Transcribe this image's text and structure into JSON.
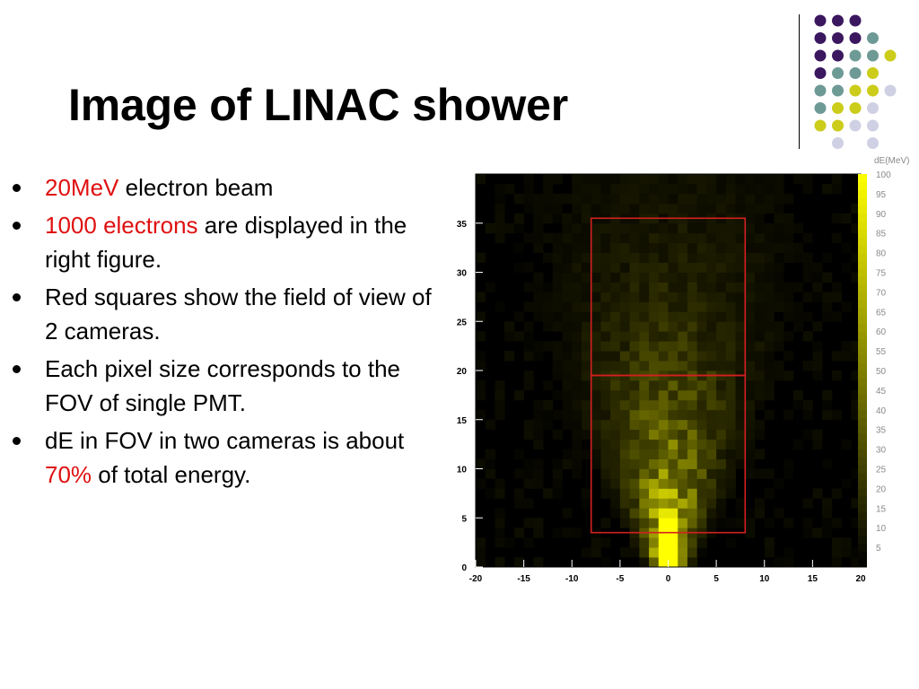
{
  "slide": {
    "title": "Image of LINAC shower"
  },
  "bullets": [
    {
      "parts": [
        {
          "text": "20MeV",
          "hl": true
        },
        {
          "text": " electron beam",
          "hl": false
        }
      ]
    },
    {
      "parts": [
        {
          "text": "1000 electrons",
          "hl": true
        },
        {
          "text": " are displayed in the right figure.",
          "hl": false
        }
      ]
    },
    {
      "parts": [
        {
          "text": "Red squares show the field of view of 2 cameras.",
          "hl": false
        }
      ]
    },
    {
      "parts": [
        {
          "text": "Each pixel size corresponds to the FOV of single PMT.",
          "hl": false
        }
      ]
    },
    {
      "parts": [
        {
          "text": "dE in FOV in two cameras is about ",
          "hl": false
        },
        {
          "text": "70%",
          "hl": true
        },
        {
          "text": " of total energy.",
          "hl": false
        }
      ]
    }
  ],
  "colors": {
    "highlight": "#e01010",
    "heatmap_low": "#000000",
    "heatmap_high": "#ffff00",
    "fov_box": "#d42020",
    "dot_purple": "#3b1760",
    "dot_teal": "#6e9a96",
    "dot_yellow": "#cccc1a",
    "dot_lavender": "#d0d0e4"
  },
  "decoration_dots": [
    [
      "purple",
      "purple",
      "purple",
      "",
      ""
    ],
    [
      "purple",
      "purple",
      "purple",
      "teal",
      ""
    ],
    [
      "purple",
      "purple",
      "teal",
      "teal",
      "yellow"
    ],
    [
      "purple",
      "teal",
      "teal",
      "yellow",
      ""
    ],
    [
      "teal",
      "teal",
      "yellow",
      "yellow",
      "lavender"
    ],
    [
      "teal",
      "yellow",
      "yellow",
      "lavender",
      ""
    ],
    [
      "yellow",
      "yellow",
      "lavender",
      "lavender",
      ""
    ],
    [
      "",
      "lavender",
      "",
      "lavender",
      ""
    ]
  ],
  "chart_data": {
    "type": "heatmap",
    "title": "",
    "xlabel": "",
    "ylabel": "",
    "xlim": [
      -20,
      20
    ],
    "ylim": [
      0,
      40
    ],
    "x_ticks": [
      -20,
      -15,
      -10,
      -5,
      0,
      5,
      10,
      15,
      20
    ],
    "y_ticks": [
      0,
      5,
      10,
      15,
      20,
      25,
      30,
      35
    ],
    "colorbar": {
      "label": "dE(MeV)",
      "range": [
        0,
        100
      ],
      "ticks": [
        5,
        10,
        15,
        20,
        25,
        30,
        35,
        40,
        45,
        50,
        55,
        60,
        65,
        70,
        75,
        80,
        85,
        90,
        95,
        100
      ]
    },
    "bin_size": 1,
    "shower": {
      "beam_axis_x": 0,
      "beam_column_value": 100,
      "beam_column_top_y": 5,
      "peak_value": 100
    },
    "fov_boxes": [
      {
        "x": [
          -8,
          8
        ],
        "y": [
          3.5,
          19.5
        ]
      },
      {
        "x": [
          -8,
          8
        ],
        "y": [
          19.5,
          35.5
        ]
      }
    ]
  }
}
